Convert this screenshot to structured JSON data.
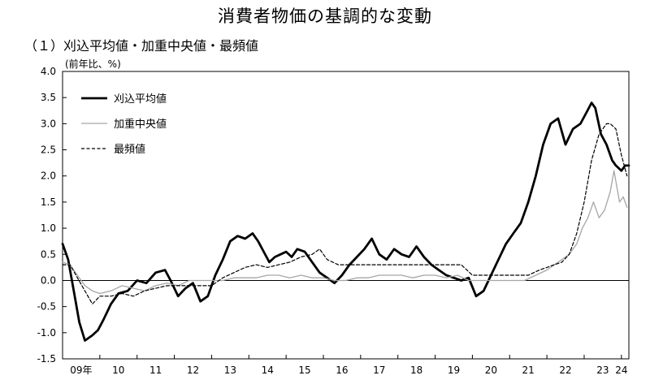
{
  "chart_data": {
    "type": "line",
    "title": "消費者物価の基調的な変動",
    "subtitle": "（１）刈込平均値・加重中央値・最頻値",
    "ylabel": "(前年比、%)",
    "xlabel": "",
    "ylim": [
      -1.5,
      4.0
    ],
    "yticks": [
      4.0,
      3.5,
      3.0,
      2.5,
      2.0,
      1.5,
      1.0,
      0.5,
      0.0,
      -0.5,
      -1.0,
      -1.5
    ],
    "ytick_labels": [
      "4.0",
      "3.5",
      "3.0",
      "2.5",
      "2.0",
      "1.5",
      "1.0",
      "0.5",
      "0.0",
      "-0.5",
      "-1.0",
      "-1.5"
    ],
    "xlim": [
      2009.0,
      2024.2
    ],
    "xticks": [
      {
        "label": "09年",
        "x": 2009.5
      },
      {
        "label": "10",
        "x": 2010.5
      },
      {
        "label": "11",
        "x": 2011.5
      },
      {
        "label": "12",
        "x": 2012.5
      },
      {
        "label": "13",
        "x": 2013.5
      },
      {
        "label": "14",
        "x": 2014.5
      },
      {
        "label": "15",
        "x": 2015.5
      },
      {
        "label": "16",
        "x": 2016.5
      },
      {
        "label": "17",
        "x": 2017.5
      },
      {
        "label": "18",
        "x": 2018.5
      },
      {
        "label": "19",
        "x": 2019.5
      },
      {
        "label": "20",
        "x": 2020.5
      },
      {
        "label": "21",
        "x": 2021.5
      },
      {
        "label": "22",
        "x": 2022.5
      },
      {
        "label": "23",
        "x": 2023.5
      },
      {
        "label": "24",
        "x": 2024.0
      }
    ],
    "zero_line": true,
    "grid": false,
    "legend_position": "top-left",
    "series": [
      {
        "name": "刈込平均値",
        "color": "#000000",
        "style": "thick",
        "x": [
          2009.0,
          2009.15,
          2009.3,
          2009.45,
          2009.6,
          2009.8,
          2009.95,
          2010.1,
          2010.3,
          2010.5,
          2010.75,
          2011.0,
          2011.25,
          2011.5,
          2011.75,
          2011.9,
          2012.1,
          2012.3,
          2012.5,
          2012.7,
          2012.9,
          2013.1,
          2013.3,
          2013.5,
          2013.7,
          2013.9,
          2014.1,
          2014.25,
          2014.4,
          2014.55,
          2014.7,
          2014.85,
          2015.0,
          2015.15,
          2015.3,
          2015.5,
          2015.7,
          2015.9,
          2016.1,
          2016.3,
          2016.5,
          2016.7,
          2016.9,
          2017.1,
          2017.3,
          2017.5,
          2017.7,
          2017.9,
          2018.1,
          2018.3,
          2018.5,
          2018.7,
          2018.9,
          2019.1,
          2019.3,
          2019.5,
          2019.7,
          2019.9,
          2020.1,
          2020.3,
          2020.5,
          2020.7,
          2020.9,
          2021.1,
          2021.3,
          2021.5,
          2021.7,
          2021.9,
          2022.1,
          2022.3,
          2022.5,
          2022.7,
          2022.9,
          2023.05,
          2023.2,
          2023.3,
          2023.45,
          2023.6,
          2023.75,
          2023.85,
          2024.0,
          2024.1,
          2024.2
        ],
        "y": [
          0.7,
          0.4,
          -0.2,
          -0.8,
          -1.15,
          -1.05,
          -0.95,
          -0.75,
          -0.45,
          -0.25,
          -0.2,
          0.0,
          -0.05,
          0.15,
          0.2,
          0.0,
          -0.3,
          -0.15,
          -0.05,
          -0.4,
          -0.3,
          0.1,
          0.4,
          0.75,
          0.85,
          0.8,
          0.9,
          0.75,
          0.55,
          0.35,
          0.45,
          0.5,
          0.55,
          0.45,
          0.6,
          0.55,
          0.35,
          0.15,
          0.05,
          -0.05,
          0.1,
          0.3,
          0.45,
          0.6,
          0.8,
          0.5,
          0.4,
          0.6,
          0.5,
          0.45,
          0.65,
          0.45,
          0.3,
          0.2,
          0.1,
          0.05,
          0.0,
          0.05,
          -0.3,
          -0.2,
          0.1,
          0.4,
          0.7,
          0.9,
          1.1,
          1.5,
          2.0,
          2.6,
          3.0,
          3.1,
          2.6,
          2.9,
          3.0,
          3.2,
          3.4,
          3.3,
          2.8,
          2.6,
          2.3,
          2.2,
          2.1,
          2.2,
          2.2
        ]
      },
      {
        "name": "加重中央値",
        "color": "#a6a6a6",
        "style": "thin",
        "x": [
          2009.0,
          2009.2,
          2009.4,
          2009.6,
          2009.8,
          2010.0,
          2010.3,
          2010.6,
          2010.9,
          2011.2,
          2011.5,
          2011.8,
          2012.1,
          2012.4,
          2012.7,
          2013.0,
          2013.3,
          2013.6,
          2013.9,
          2014.2,
          2014.5,
          2014.8,
          2015.1,
          2015.4,
          2015.7,
          2016.0,
          2016.3,
          2016.6,
          2016.9,
          2017.2,
          2017.5,
          2017.8,
          2018.1,
          2018.4,
          2018.7,
          2019.0,
          2019.3,
          2019.6,
          2019.9,
          2020.2,
          2020.5,
          2020.8,
          2021.1,
          2021.4,
          2021.7,
          2022.0,
          2022.2,
          2022.4,
          2022.6,
          2022.8,
          2022.95,
          2023.1,
          2023.25,
          2023.4,
          2023.55,
          2023.7,
          2023.8,
          2023.95,
          2024.05,
          2024.15
        ],
        "y": [
          0.35,
          0.3,
          0.1,
          -0.1,
          -0.2,
          -0.25,
          -0.2,
          -0.1,
          -0.15,
          -0.2,
          -0.1,
          -0.05,
          -0.1,
          0.0,
          0.0,
          0.0,
          0.0,
          0.05,
          0.05,
          0.05,
          0.1,
          0.1,
          0.05,
          0.1,
          0.05,
          0.05,
          0.0,
          0.0,
          0.05,
          0.05,
          0.1,
          0.1,
          0.1,
          0.05,
          0.1,
          0.1,
          0.05,
          0.1,
          0.0,
          0.0,
          0.0,
          0.0,
          0.0,
          0.0,
          0.1,
          0.2,
          0.3,
          0.4,
          0.5,
          0.7,
          1.0,
          1.2,
          1.5,
          1.2,
          1.35,
          1.7,
          2.1,
          1.5,
          1.6,
          1.4
        ]
      },
      {
        "name": "最頻値",
        "color": "#000000",
        "style": "dashed",
        "x": [
          2009.0,
          2009.2,
          2009.4,
          2009.6,
          2009.8,
          2010.0,
          2010.3,
          2010.6,
          2010.9,
          2011.2,
          2011.5,
          2011.8,
          2012.1,
          2012.4,
          2012.7,
          2013.0,
          2013.3,
          2013.6,
          2013.9,
          2014.2,
          2014.5,
          2014.8,
          2015.1,
          2015.4,
          2015.7,
          2015.9,
          2016.1,
          2016.4,
          2016.7,
          2017.0,
          2017.3,
          2017.6,
          2017.9,
          2018.2,
          2018.5,
          2018.8,
          2019.1,
          2019.4,
          2019.7,
          2020.0,
          2020.3,
          2020.6,
          2020.9,
          2021.2,
          2021.5,
          2021.8,
          2022.0,
          2022.2,
          2022.4,
          2022.6,
          2022.8,
          2023.0,
          2023.2,
          2023.4,
          2023.6,
          2023.7,
          2023.85,
          2024.0,
          2024.15
        ],
        "y": [
          0.3,
          0.3,
          0.05,
          -0.2,
          -0.45,
          -0.3,
          -0.3,
          -0.25,
          -0.3,
          -0.2,
          -0.15,
          -0.1,
          -0.1,
          -0.1,
          -0.1,
          -0.1,
          0.05,
          0.15,
          0.25,
          0.3,
          0.25,
          0.3,
          0.35,
          0.45,
          0.5,
          0.6,
          0.4,
          0.3,
          0.3,
          0.3,
          0.3,
          0.3,
          0.3,
          0.3,
          0.3,
          0.3,
          0.3,
          0.3,
          0.3,
          0.1,
          0.1,
          0.1,
          0.1,
          0.1,
          0.1,
          0.2,
          0.25,
          0.3,
          0.35,
          0.5,
          0.9,
          1.5,
          2.3,
          2.8,
          3.0,
          3.0,
          2.9,
          2.4,
          2.0
        ]
      }
    ]
  }
}
